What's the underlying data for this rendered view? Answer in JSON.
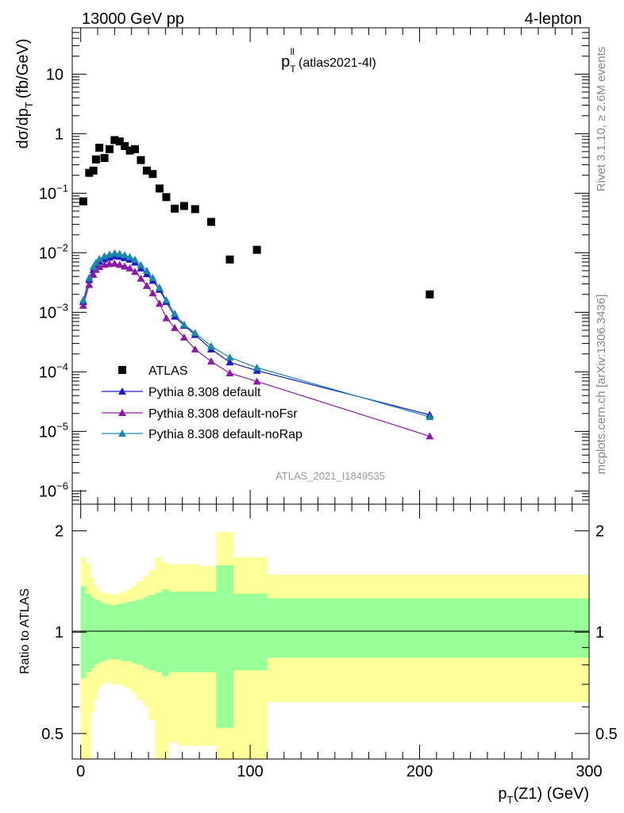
{
  "header": {
    "left": "13000 GeV pp",
    "right": "4-lepton"
  },
  "side_labels": {
    "rivet": "Rivet 3.1.10, ≥ 2.6M events",
    "mcplots": "mcplots.cern.ch [arXiv:1306.3436]"
  },
  "colors": {
    "atlas": "#000000",
    "default": "#1a1acc",
    "noFsr": "#8b1aa8",
    "noRap": "#1a8aa8",
    "band_inner": "#99ff99",
    "band_outer": "#ffff99"
  },
  "chart_data": [
    {
      "type": "scatter",
      "title_main": "p",
      "title_sub": "T",
      "title_sup": "ll",
      "title_rest": "(atlas2021-4l)",
      "ylabel": "dσ/dp",
      "ylabel_sub": "T",
      "ylabel_unit": "(fb/GeV)",
      "yscale": "log",
      "ylim": [
        6e-07,
        60
      ],
      "xlim": [
        -5,
        300
      ],
      "yticks": [
        "10",
        "1",
        "10⁻¹",
        "10⁻²",
        "10⁻³",
        "10⁻⁴",
        "10⁻⁵",
        "10⁻⁶"
      ],
      "watermark": "ATLAS_2021_I1849535",
      "legend": [
        "ATLAS",
        "Pythia 8.308 default",
        "Pythia 8.308 default-noFsr",
        "Pythia 8.308 default-noRap"
      ],
      "series": [
        {
          "name": "ATLAS",
          "x": [
            1.5,
            5,
            7.5,
            9,
            11,
            14,
            17,
            20,
            23,
            26,
            29,
            32,
            35.5,
            39,
            42.5,
            46.5,
            50.5,
            55.5,
            61,
            67.5,
            77,
            88,
            104,
            206
          ],
          "y": [
            0.073,
            0.22,
            0.24,
            0.37,
            0.58,
            0.39,
            0.55,
            0.78,
            0.74,
            0.62,
            0.52,
            0.55,
            0.36,
            0.24,
            0.21,
            0.12,
            0.086,
            0.055,
            0.061,
            0.054,
            0.033,
            0.0077,
            0.0112,
            0.002
          ]
        },
        {
          "name": "Pythia 8.308 default",
          "x": [
            1.5,
            5,
            7.5,
            9,
            11,
            14,
            17,
            20,
            23,
            26,
            29,
            32,
            35.5,
            39,
            42.5,
            46.5,
            50.5,
            55.5,
            61,
            67.5,
            77,
            88,
            104,
            206
          ],
          "y": [
            0.0015,
            0.0035,
            0.0052,
            0.0062,
            0.0071,
            0.0078,
            0.0083,
            0.0088,
            0.0086,
            0.0082,
            0.0077,
            0.0069,
            0.0055,
            0.0044,
            0.0034,
            0.0024,
            0.0015,
            0.00085,
            0.0006,
            0.00042,
            0.00024,
            0.000145,
            0.000105,
            1.9e-05
          ]
        },
        {
          "name": "Pythia 8.308 default-noFsr",
          "x": [
            1.5,
            5,
            7.5,
            9,
            11,
            14,
            17,
            20,
            23,
            26,
            29,
            32,
            35.5,
            39,
            42.5,
            46.5,
            50.5,
            55.5,
            61,
            67.5,
            77,
            88,
            104,
            206
          ],
          "y": [
            0.0013,
            0.0029,
            0.0043,
            0.0052,
            0.0058,
            0.0063,
            0.0065,
            0.0066,
            0.0063,
            0.0059,
            0.0055,
            0.0048,
            0.0037,
            0.0028,
            0.0021,
            0.0014,
            0.0008,
            0.00055,
            0.00038,
            0.00024,
            0.00015,
            9.5e-05,
            6.9e-05,
            8.3e-06
          ]
        },
        {
          "name": "Pythia 8.308 default-noRap",
          "x": [
            1.5,
            5,
            7.5,
            9,
            11,
            14,
            17,
            20,
            23,
            26,
            29,
            32,
            35.5,
            39,
            42.5,
            46.5,
            50.5,
            55.5,
            61,
            67.5,
            77,
            88,
            104,
            206
          ],
          "y": [
            0.0016,
            0.0038,
            0.0058,
            0.0068,
            0.0079,
            0.0088,
            0.0094,
            0.0099,
            0.0096,
            0.0091,
            0.0085,
            0.0077,
            0.0062,
            0.005,
            0.0038,
            0.0026,
            0.0016,
            0.00095,
            0.00062,
            0.00045,
            0.00027,
            0.000175,
            0.000118,
            1.75e-05
          ]
        }
      ]
    },
    {
      "type": "area",
      "ylabel": "Ratio to ATLAS",
      "xlabel": "p",
      "xlabel_sub": "T",
      "xlabel_rest": "(Z1) (GeV)",
      "yscale": "log",
      "ylim": [
        0.42,
        2.4
      ],
      "xlim": [
        -5,
        300
      ],
      "xticks": [
        "0",
        "100",
        "200",
        "300"
      ],
      "yticks": [
        "2",
        "1",
        "0.5"
      ],
      "bin_edges": [
        0,
        3,
        6,
        8,
        10,
        12,
        15,
        18,
        21,
        24,
        27,
        30,
        33,
        37,
        40,
        44,
        48,
        52,
        58,
        64,
        70,
        80,
        90,
        110,
        300
      ],
      "inner_low": [
        0.73,
        0.76,
        0.78,
        0.8,
        0.81,
        0.82,
        0.83,
        0.83,
        0.83,
        0.82,
        0.82,
        0.81,
        0.8,
        0.78,
        0.77,
        0.76,
        0.74,
        0.76,
        0.76,
        0.76,
        0.76,
        0.52,
        0.77,
        0.84
      ],
      "inner_high": [
        1.37,
        1.3,
        1.27,
        1.25,
        1.24,
        1.22,
        1.21,
        1.2,
        1.21,
        1.22,
        1.23,
        1.24,
        1.25,
        1.27,
        1.29,
        1.31,
        1.34,
        1.32,
        1.32,
        1.32,
        1.32,
        1.58,
        1.3,
        1.26
      ],
      "outer_low": [
        0.42,
        0.42,
        0.58,
        0.63,
        0.68,
        0.7,
        0.71,
        0.7,
        0.7,
        0.69,
        0.68,
        0.66,
        0.63,
        0.6,
        0.55,
        0.42,
        0.42,
        0.47,
        0.46,
        0.46,
        0.46,
        0.42,
        0.42,
        0.62
      ],
      "outer_high": [
        1.67,
        1.6,
        1.45,
        1.38,
        1.33,
        1.31,
        1.3,
        1.29,
        1.3,
        1.32,
        1.34,
        1.37,
        1.42,
        1.47,
        1.53,
        1.67,
        1.61,
        1.59,
        1.59,
        1.59,
        1.57,
        1.98,
        1.67,
        1.48
      ]
    }
  ]
}
